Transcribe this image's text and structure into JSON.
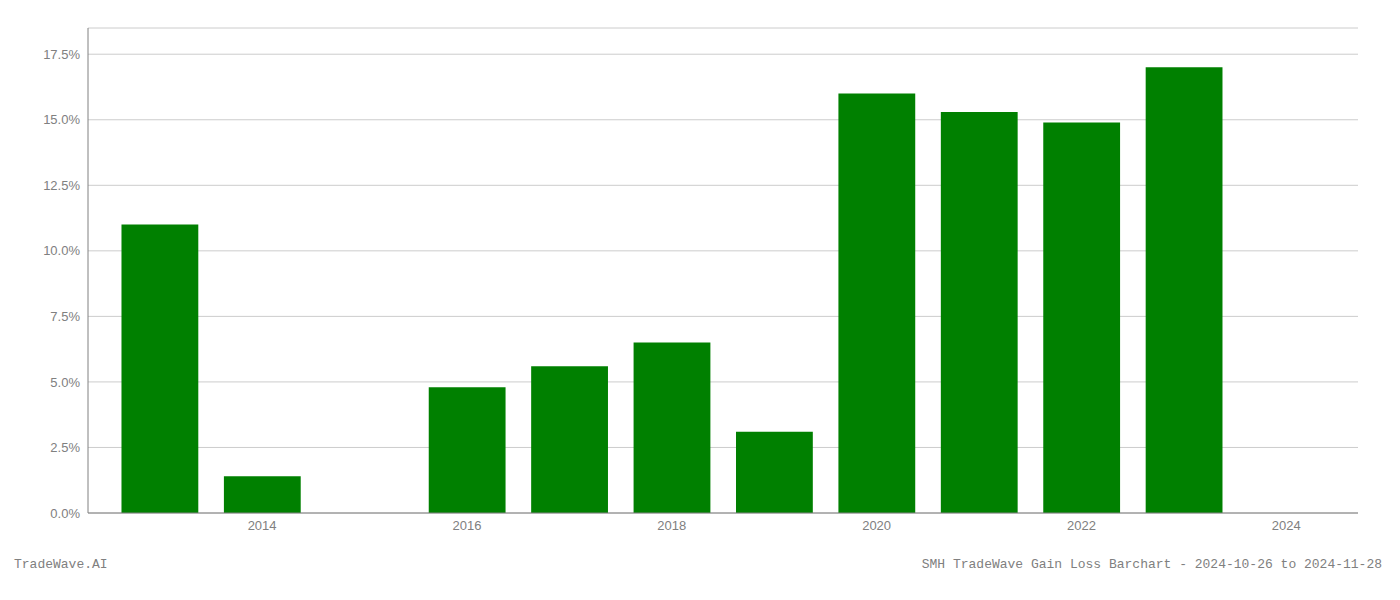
{
  "chart_data": {
    "type": "bar",
    "x": [
      2013,
      2014,
      2016,
      2017,
      2018,
      2019,
      2020,
      2021,
      2022,
      2023
    ],
    "values": [
      0.11,
      0.014,
      0.048,
      0.056,
      0.065,
      0.031,
      0.16,
      0.153,
      0.149,
      0.17
    ],
    "color": "#008000",
    "xlim": [
      2012.3,
      2024.7
    ],
    "xticks": [
      2014,
      2016,
      2018,
      2020,
      2022,
      2024
    ],
    "ylim": [
      0.0,
      0.185
    ],
    "yticks": [
      {
        "value": 0.0,
        "label": "0.0%"
      },
      {
        "value": 0.025,
        "label": "2.5%"
      },
      {
        "value": 0.05,
        "label": "5.0%"
      },
      {
        "value": 0.075,
        "label": "7.5%"
      },
      {
        "value": 0.1,
        "label": "10.0%"
      },
      {
        "value": 0.125,
        "label": "12.5%"
      },
      {
        "value": 0.15,
        "label": "15.0%"
      },
      {
        "value": 0.175,
        "label": "17.5%"
      }
    ],
    "grid": true,
    "annotations": [
      "TradeWave.AI",
      "SMH TradeWave Gain Loss Barchart - 2024-10-26 to 2024-11-28"
    ]
  }
}
